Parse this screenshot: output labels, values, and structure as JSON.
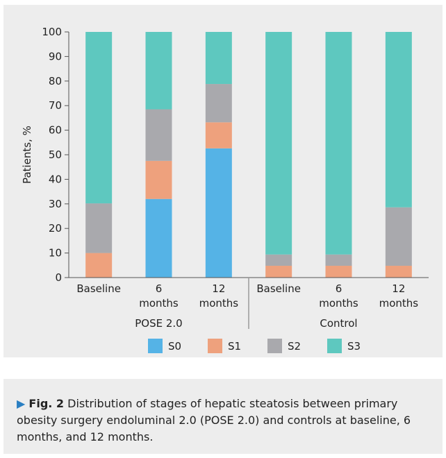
{
  "chart_data": {
    "type": "bar",
    "stacked": true,
    "ylabel": "Patients, %",
    "ylim": [
      0,
      100
    ],
    "yticks": [
      0,
      10,
      20,
      30,
      40,
      50,
      60,
      70,
      80,
      90,
      100
    ],
    "categories": [
      {
        "label": [
          "Baseline"
        ],
        "group": "POSE 2.0"
      },
      {
        "label": [
          "6",
          "months"
        ],
        "group": "POSE 2.0"
      },
      {
        "label": [
          "12",
          "months"
        ],
        "group": "POSE 2.0"
      },
      {
        "label": [
          "Baseline"
        ],
        "group": "Control"
      },
      {
        "label": [
          "6",
          "months"
        ],
        "group": "Control"
      },
      {
        "label": [
          "12",
          "months"
        ],
        "group": "Control"
      }
    ],
    "groups": [
      "POSE 2.0",
      "Control"
    ],
    "series": [
      {
        "name": "S0",
        "color": "#55b3e6",
        "values": [
          0,
          32,
          52.6,
          0,
          0,
          0
        ]
      },
      {
        "name": "S1",
        "color": "#eea17d",
        "values": [
          10,
          15.5,
          10.6,
          4.8,
          4.8,
          4.8
        ]
      },
      {
        "name": "S2",
        "color": "#a9a9ad",
        "values": [
          20.2,
          21,
          15.6,
          4.6,
          4.6,
          23.8
        ]
      },
      {
        "name": "S3",
        "color": "#5ec8bf",
        "values": [
          69.8,
          31.5,
          21.2,
          90.6,
          90.6,
          71.4
        ]
      }
    ],
    "legend_position": "bottom",
    "grid": false
  },
  "caption": {
    "marker": "▶",
    "fig_label": "Fig. 2",
    "text": "Distribution of stages of hepatic steatosis between primary obesity surgery endoluminal 2.0 (POSE 2.0) and controls at baseline, 6 months, and 12 months."
  }
}
